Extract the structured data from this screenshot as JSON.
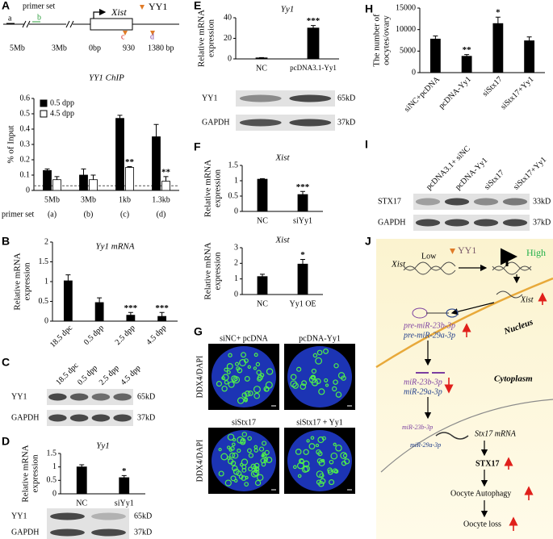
{
  "panel_labels": [
    "A",
    "B",
    "C",
    "D",
    "E",
    "F",
    "G",
    "H",
    "I",
    "J"
  ],
  "schematic": {
    "primer_set": "primer set",
    "primers": [
      "a",
      "b",
      "c",
      "d"
    ],
    "gene": "Xist",
    "factor": "YY1",
    "positions": [
      "5Mb",
      "3Mb",
      "0bp",
      "930",
      "1380 bp"
    ]
  },
  "chart_data": [
    {
      "type": "bar",
      "title": "YY1 ChIP",
      "y_label": [
        "% of Input"
      ],
      "categories": [
        "5Mb",
        "3Mb",
        "1kb",
        "1.3kb"
      ],
      "primer_label": "primer set",
      "primer_ids": [
        "(a)",
        "(b)",
        "(c)",
        "(d)"
      ],
      "primer_colors": [
        "#000000",
        "#2a9d3a",
        "#d62020",
        "#7b3fa0"
      ],
      "series": [
        {
          "name": "0.5 dpp",
          "color": "#000000",
          "values": [
            0.13,
            0.1,
            0.47,
            0.35
          ],
          "errors": [
            0.01,
            0.04,
            0.02,
            0.08
          ],
          "significance": [
            null,
            null,
            null,
            null
          ]
        },
        {
          "name": "4.5 dpp",
          "color": "#ffffff",
          "values": [
            0.07,
            0.07,
            0.15,
            0.06
          ],
          "errors": [
            0.02,
            0.03,
            0.005,
            0.03
          ],
          "significance": [
            null,
            null,
            "**",
            "**"
          ]
        }
      ],
      "ylim": [
        0,
        0.6
      ],
      "yticks": [
        0,
        0.1,
        0.2,
        0.3,
        0.4,
        0.5,
        0.6
      ],
      "legend": "upper left",
      "reference_line": 0.03
    },
    {
      "type": "bar",
      "title": "Yy1 mRNA",
      "y_label": [
        "Relative mRNA",
        "expression"
      ],
      "categories": [
        "18.5 dpc",
        "0.5 dpp",
        "2.5 dpp",
        "4.5 dpp"
      ],
      "values": [
        1.02,
        0.47,
        0.15,
        0.12
      ],
      "errors": [
        0.15,
        0.12,
        0.07,
        0.1
      ],
      "significance": [
        null,
        null,
        "***",
        "***"
      ],
      "color": "#000000",
      "ylim": [
        0,
        2
      ],
      "yticks": [
        0,
        0.5,
        1,
        1.5,
        2
      ]
    },
    {
      "type": "bar",
      "title": "Yy1",
      "y_label": [
        "Relative mRNA",
        "expression"
      ],
      "categories": [
        "NC",
        "siYy1"
      ],
      "values": [
        1.0,
        0.6
      ],
      "errors": [
        0.08,
        0.08
      ],
      "significance": [
        null,
        "*"
      ],
      "color": "#000000",
      "ylim": [
        0,
        1.5
      ],
      "yticks": [
        0,
        0.5,
        1,
        1.5
      ]
    },
    {
      "type": "bar",
      "title": "Yy1",
      "y_label": [
        "Relative mRNA",
        "expression"
      ],
      "categories": [
        "NC",
        "pcDNA3.1-Yy1"
      ],
      "values": [
        1,
        30
      ],
      "errors": [
        0.3,
        2.5
      ],
      "significance": [
        null,
        "***"
      ],
      "color": "#000000",
      "ylim": [
        0,
        40
      ],
      "yticks": [
        0,
        20,
        40
      ]
    },
    {
      "type": "bar",
      "title": "Xist",
      "y_label": [
        "Relative mRNA",
        "expression"
      ],
      "categories": [
        "NC",
        "siYy1"
      ],
      "values": [
        1.05,
        0.55
      ],
      "errors": [
        0.02,
        0.1
      ],
      "significance": [
        null,
        "***"
      ],
      "color": "#000000",
      "ylim": [
        0,
        1.5
      ],
      "yticks": [
        0,
        0.5,
        1,
        1.5
      ]
    },
    {
      "type": "bar",
      "title": "Xist",
      "y_label": [
        "Relative mRNA",
        "expression"
      ],
      "categories": [
        "NC",
        "Yy1 OE"
      ],
      "values": [
        1.15,
        1.95
      ],
      "errors": [
        0.15,
        0.3
      ],
      "significance": [
        null,
        "*"
      ],
      "color": "#000000",
      "ylim": [
        0,
        3
      ],
      "yticks": [
        0,
        1,
        2,
        3
      ]
    },
    {
      "type": "bar",
      "y_label": [
        "The number of",
        "oocytes/ovary"
      ],
      "categories": [
        "siNC+pcDNA",
        "pcDNA-Yy1",
        "siStx17",
        "siStx17+Yy1"
      ],
      "values": [
        7800,
        3800,
        11400,
        7400
      ],
      "errors": [
        700,
        400,
        1500,
        900
      ],
      "significance": [
        null,
        "**",
        "*",
        null
      ],
      "color": "#000000",
      "ylim": [
        0,
        15000
      ],
      "yticks": [
        0,
        5000,
        10000,
        15000
      ]
    }
  ],
  "blots": [
    {
      "lanes": [
        "18.5 dpc",
        "0.5 dpp",
        "2.5 dpp",
        "4.5 dpp"
      ],
      "rows": [
        {
          "protein": "YY1",
          "size": "65kD"
        },
        {
          "protein": "GAPDH",
          "size": "37kD"
        }
      ]
    },
    {
      "rows": [
        {
          "protein": "YY1",
          "size": "65kD"
        },
        {
          "protein": "GAPDH",
          "size": "37kD"
        }
      ]
    },
    {
      "rows": [
        {
          "protein": "YY1",
          "size": "65kD"
        },
        {
          "protein": "GAPDH",
          "size": "37kD"
        }
      ]
    },
    {
      "lanes": [
        "pcDNA3.1+ siNC",
        "pcDNA-Yy1",
        "siStx17",
        "siStx17+Yy1"
      ],
      "rows": [
        {
          "protein": "STX17",
          "size": "33kD"
        },
        {
          "protein": "GAPDH",
          "size": "37kD"
        }
      ]
    }
  ],
  "images": {
    "titles": [
      "siNC+ pcDNA",
      "pcDNA-Yy1",
      "siStx17",
      "siStx17 + Yy1"
    ],
    "stain": [
      "DDX4/DAPI",
      "DDX4/DAPI"
    ]
  },
  "pathway": {
    "xist_low": "Xist",
    "low": "Low",
    "yy1": "YY1",
    "high": "High",
    "xist": "Xist",
    "pre_mir_23b": "pre-miR-23b-3p",
    "pre_mir_29a": "pre-miR-29a-3p",
    "nucleus": "Nucleus",
    "cytoplasm": "Cytoplasm",
    "mir_23b": "miR-23b-3p",
    "mir_29a": "miR-29a-3p",
    "mir_23b_bound": "miR-23b-3p",
    "mir_29a_bound": "miR-29a-3p",
    "stx17_mrna": "Stx17 mRNA",
    "stx17": "STX17",
    "autophagy": "Oocyte Autophagy",
    "loss": "Oocyte loss"
  }
}
